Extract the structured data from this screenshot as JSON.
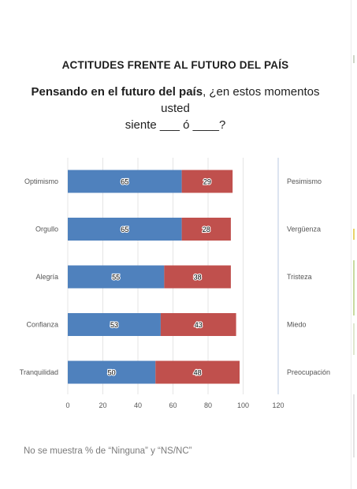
{
  "title": "ACTITUDES FRENTE AL FUTURO DEL PAÍS",
  "question": {
    "bold_part": "Pensando en el futuro del país",
    "rest_line1": ", ¿en estos momentos usted",
    "line2": "siente ___ ó ____?"
  },
  "footnote": "No se muestra % de “Ninguna” y “NS/NC”",
  "colors": {
    "positive": "#4f81bd",
    "negative": "#c0504d",
    "grid": "#e4e4e4",
    "axis_text": "#555555"
  },
  "chart_data": {
    "type": "bar",
    "orientation": "horizontal",
    "stacked": true,
    "categories": [
      "Optimismo",
      "Orgullo",
      "Alegría",
      "Confianza",
      "Tranquilidad"
    ],
    "right_labels": [
      "Pesimismo",
      "Vergüenza",
      "Tristeza",
      "Miedo",
      "Preocupación"
    ],
    "series": [
      {
        "values": [
          65,
          65,
          55,
          53,
          50
        ]
      },
      {
        "values": [
          29,
          28,
          38,
          43,
          48
        ]
      }
    ],
    "x_ticks": [
      0,
      20,
      40,
      60,
      80,
      100,
      120
    ],
    "xlim": [
      0,
      120
    ],
    "grid": true,
    "xlabel": "",
    "ylabel": ""
  }
}
